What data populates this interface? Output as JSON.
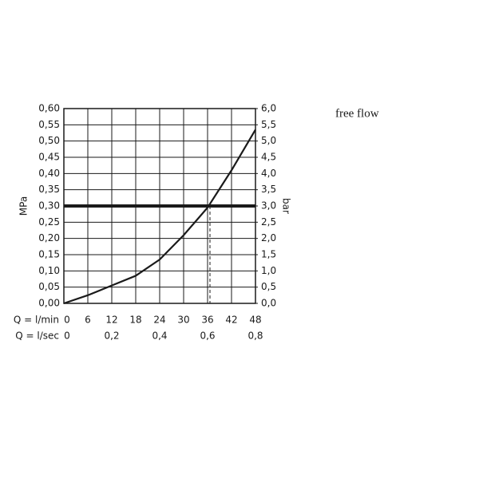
{
  "chart_data": {
    "type": "line",
    "annotation": "free flow",
    "ylabel": "MPa",
    "y2label": "bar",
    "xlabel": "Q = l/min",
    "x2label": "Q = l/sec",
    "x": [
      0,
      6,
      12,
      18,
      24,
      30,
      36,
      42,
      48
    ],
    "values": [
      0,
      0.025,
      0.055,
      0.085,
      0.135,
      0.21,
      0.295,
      0.41,
      0.535
    ],
    "color": "#1a1a1a",
    "xlim": [
      0,
      48
    ],
    "xticks": [
      0,
      6,
      12,
      18,
      24,
      30,
      36,
      42,
      48
    ],
    "x2lim": [
      0,
      0.8
    ],
    "x2ticks": [
      0,
      {
        "value": 0.2,
        "label": "0,2"
      },
      {
        "value": 0.4,
        "label": "0,4"
      },
      {
        "value": 0.6,
        "label": "0,6"
      },
      {
        "value": 0.8,
        "label": "0,8"
      }
    ],
    "ylim": [
      0,
      0.6
    ],
    "yticks": [
      {
        "value": 0,
        "label": "0,00"
      },
      {
        "value": 0.05,
        "label": "0,05"
      },
      {
        "value": 0.1,
        "label": "0,10"
      },
      {
        "value": 0.15,
        "label": "0,15"
      },
      {
        "value": 0.2,
        "label": "0,20"
      },
      {
        "value": 0.25,
        "label": "0,25"
      },
      {
        "value": 0.3,
        "label": "0,30"
      },
      {
        "value": 0.35,
        "label": "0,35"
      },
      {
        "value": 0.4,
        "label": "0,40"
      },
      {
        "value": 0.45,
        "label": "0,45"
      },
      {
        "value": 0.5,
        "label": "0,50"
      },
      {
        "value": 0.55,
        "label": "0,55"
      },
      {
        "value": 0.6,
        "label": "0,60"
      }
    ],
    "y2lim": [
      0,
      6
    ],
    "y2ticks": [
      {
        "value": 0,
        "label": "0,0"
      },
      {
        "value": 0.5,
        "label": "0,5"
      },
      {
        "value": 1,
        "label": "1,0"
      },
      {
        "value": 1.5,
        "label": "1,5"
      },
      {
        "value": 2,
        "label": "2,0"
      },
      {
        "value": 2.5,
        "label": "2,5"
      },
      {
        "value": 3,
        "label": "3,0"
      },
      {
        "value": 3.5,
        "label": "3,5"
      },
      {
        "value": 4,
        "label": "4,0"
      },
      {
        "value": 4.5,
        "label": "4,5"
      },
      {
        "value": 5,
        "label": "5,0"
      },
      {
        "value": 5.5,
        "label": "5,5"
      },
      {
        "value": 6,
        "label": "6,0"
      }
    ],
    "reference_lines": {
      "y": 0.3,
      "x": 36.6
    },
    "grid": true
  }
}
